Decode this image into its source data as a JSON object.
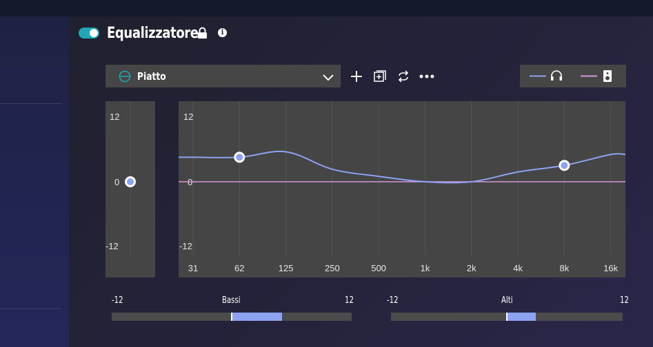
{
  "header": {
    "title": "Equalizzatore",
    "toggle_on": true,
    "accent_color": "#22a5b6"
  },
  "preset": {
    "selected": "Piatto"
  },
  "toolbar": {
    "icons": [
      "plus-icon",
      "add-preset-icon",
      "repeat-icon",
      "more-icon"
    ]
  },
  "legend": {
    "items": [
      {
        "icon": "headphones-icon",
        "color": "#8ea2f2"
      },
      {
        "icon": "speaker-icon",
        "color": "#d897d8"
      }
    ]
  },
  "preamp": {
    "y_labels": [
      "12",
      "0",
      "-12"
    ],
    "value": 0
  },
  "chart_data": {
    "type": "line",
    "x": [
      "31",
      "62",
      "125",
      "250",
      "500",
      "1k",
      "2k",
      "4k",
      "8k",
      "16k"
    ],
    "ylim": [
      -12,
      12
    ],
    "y_labels": [
      "12",
      "0",
      "-12"
    ],
    "grid": true,
    "series": [
      {
        "name": "headphones",
        "color": "#8ea2f2",
        "values": [
          4.5,
          4.5,
          5.5,
          2.3,
          1.0,
          0,
          0,
          1.8,
          3.0,
          5.0
        ]
      },
      {
        "name": "speaker",
        "color": "#d897d8",
        "values": [
          0,
          0,
          0,
          0,
          0,
          0,
          0,
          0,
          0,
          0
        ]
      }
    ],
    "handles": [
      {
        "label": "62",
        "value": 4.5
      },
      {
        "label": "8k",
        "value": 3.0
      }
    ]
  },
  "sliders": [
    {
      "name": "Bassi",
      "min": "-12",
      "max": "12",
      "value": 5
    },
    {
      "name": "Alti",
      "min": "-12",
      "max": "12",
      "value": 3
    }
  ]
}
